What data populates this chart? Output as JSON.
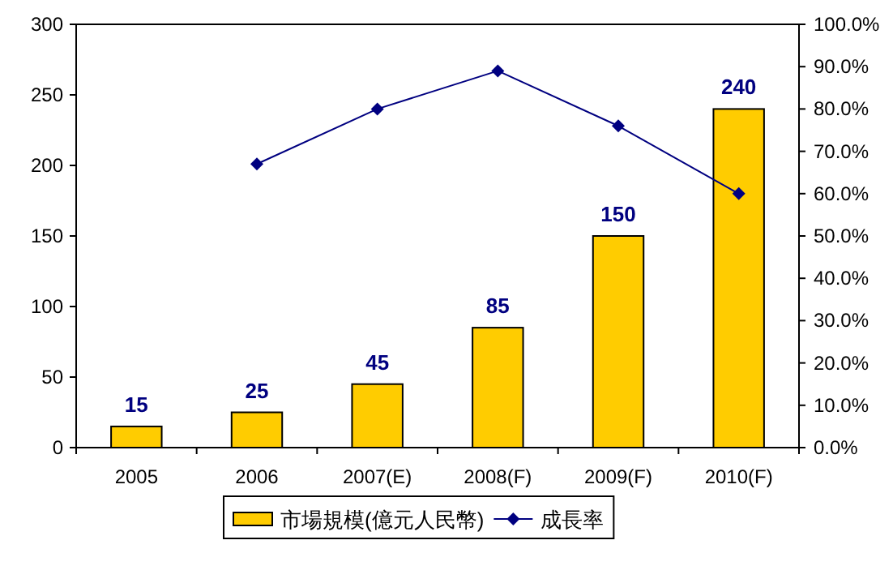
{
  "chart_data": {
    "type": "bar",
    "categories": [
      "2005",
      "2006",
      "2007(E)",
      "2008(F)",
      "2009(F)",
      "2010(F)"
    ],
    "series": [
      {
        "name": "市場規模(億元人民幣)",
        "color": "#ffcc00",
        "values": [
          15,
          25,
          45,
          85,
          150,
          240
        ],
        "value_labels": [
          "15",
          "25",
          "45",
          "85",
          "150",
          "240"
        ]
      },
      {
        "name": "成長率",
        "type": "line",
        "axis": "y2",
        "color": "#000080",
        "marker": "diamond",
        "values": [
          null,
          67,
          80,
          89,
          76,
          60
        ]
      }
    ],
    "ylim": [
      0,
      300
    ],
    "yticks": [
      0,
      50,
      100,
      150,
      200,
      250,
      300
    ],
    "y2lim": [
      0,
      100
    ],
    "y2ticks": [
      {
        "value": 0,
        "label": "0.0%"
      },
      {
        "value": 10,
        "label": "10.0%"
      },
      {
        "value": 20,
        "label": "20.0%"
      },
      {
        "value": 30,
        "label": "30.0%"
      },
      {
        "value": 40,
        "label": "40.0%"
      },
      {
        "value": 50,
        "label": "50.0%"
      },
      {
        "value": 60,
        "label": "60.0%"
      },
      {
        "value": 70,
        "label": "70.0%"
      },
      {
        "value": 80,
        "label": "80.0%"
      },
      {
        "value": 90,
        "label": "90.0%"
      },
      {
        "value": 100,
        "label": "100.0%"
      }
    ],
    "legend": "bottom"
  }
}
